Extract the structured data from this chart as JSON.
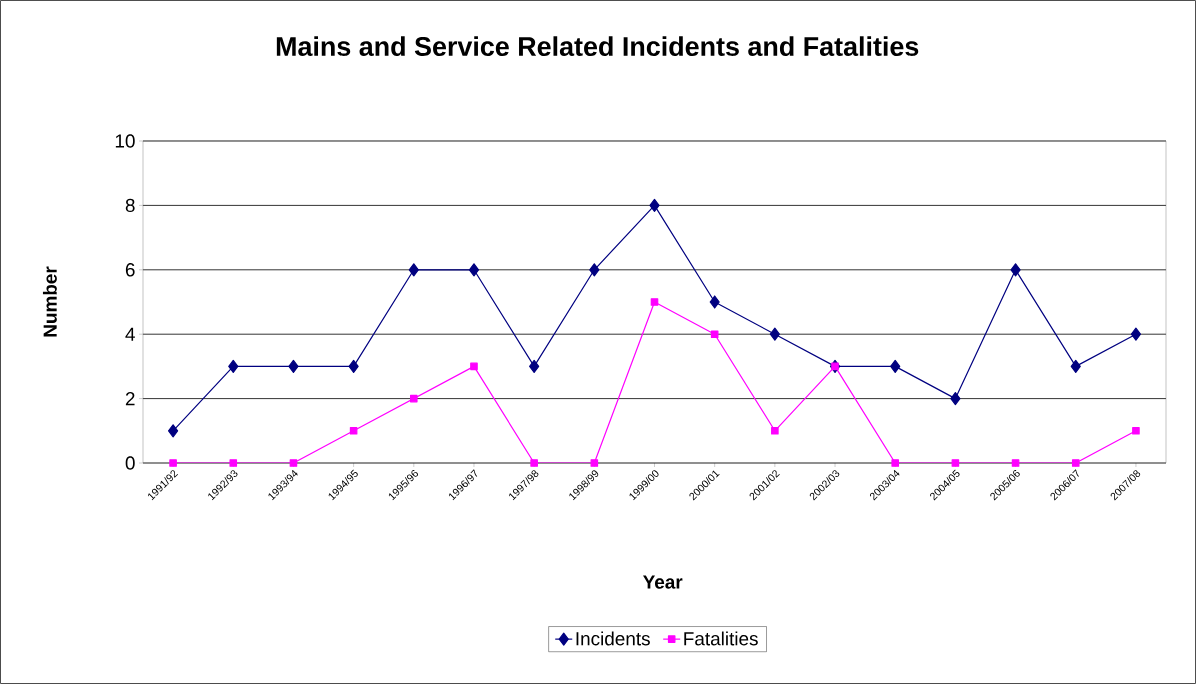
{
  "chart_data": {
    "type": "line",
    "title": "Mains and Service Related Incidents and Fatalities",
    "xlabel": "Year",
    "ylabel": "Number",
    "categories": [
      "1991/92",
      "1992/93",
      "1993/94",
      "1994/95",
      "1995/96",
      "1996/97",
      "1997/98",
      "1998/99",
      "1999/00",
      "2000/01",
      "2001/02",
      "2002/03",
      "2003/04",
      "2004/05",
      "2005/06",
      "2006/07",
      "2007/08"
    ],
    "series": [
      {
        "name": "Incidents",
        "color": "#000080",
        "marker": "diamond",
        "values": [
          1,
          3,
          3,
          3,
          6,
          6,
          3,
          6,
          8,
          5,
          4,
          3,
          3,
          2,
          6,
          3,
          4
        ]
      },
      {
        "name": "Fatalities",
        "color": "#ff00ff",
        "marker": "square",
        "values": [
          0,
          0,
          0,
          1,
          2,
          3,
          0,
          0,
          5,
          4,
          1,
          3,
          0,
          0,
          0,
          0,
          1
        ]
      }
    ],
    "ylim": [
      0,
      10
    ],
    "yticks": [
      0,
      2,
      4,
      6,
      8,
      10
    ],
    "grid": "y",
    "legend": "bottom",
    "line_style": "solid"
  }
}
